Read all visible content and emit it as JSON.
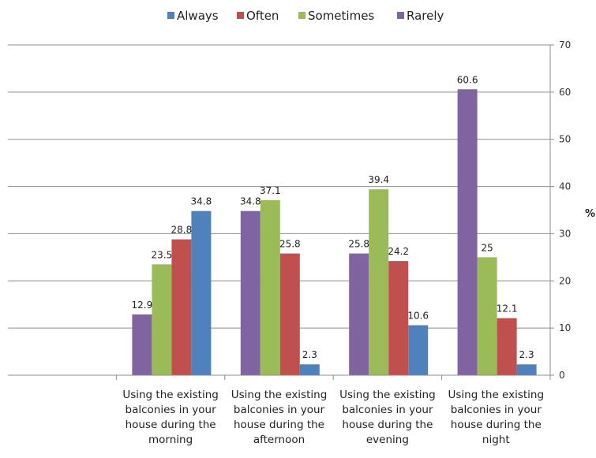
{
  "chart_data": {
    "type": "bar",
    "title": "",
    "xlabel": "",
    "ylabel": "%",
    "ylim": [
      0,
      70
    ],
    "y_ticks": [
      0,
      10,
      20,
      30,
      40,
      50,
      60,
      70
    ],
    "y_axis_side": "right",
    "grid": true,
    "legend_position": "top",
    "categories": [
      "",
      [
        "Using the existing",
        "balconies in your",
        "house during the",
        "morning"
      ],
      [
        "Using the existing",
        "balconies in your",
        "house during the",
        "afternoon"
      ],
      [
        "Using the existing",
        "balconies in your",
        "house during the",
        "evening"
      ],
      [
        "Using the existing",
        "balconies in your",
        "house during the",
        "night"
      ]
    ],
    "legend": [
      "Always",
      "Often",
      "Sometimes",
      "Rarely"
    ],
    "series_colors": {
      "Always": "#4f81bd",
      "Often": "#c0504d",
      "Sometimes": "#9bbb59",
      "Rarely": "#8064a2"
    },
    "groups": [
      {
        "bars": []
      },
      {
        "bars": [
          {
            "series": "Rarely",
            "value": 12.9,
            "label": "12.9"
          },
          {
            "series": "Sometimes",
            "value": 23.5,
            "label": "23.5"
          },
          {
            "series": "Often",
            "value": 28.8,
            "label": "28.8"
          },
          {
            "series": "Always",
            "value": 34.8,
            "label": "34.8"
          }
        ]
      },
      {
        "bars": [
          {
            "series": "Rarely",
            "value": 34.8,
            "label": "34.8"
          },
          {
            "series": "Sometimes",
            "value": 37.1,
            "label": "37.1"
          },
          {
            "series": "Often",
            "value": 25.8,
            "label": "25.8"
          },
          {
            "series": "Always",
            "value": 2.3,
            "label": "2.3"
          }
        ]
      },
      {
        "bars": [
          {
            "series": "Rarely",
            "value": 25.8,
            "label": "25.8"
          },
          {
            "series": "Sometimes",
            "value": 39.4,
            "label": "39.4"
          },
          {
            "series": "Often",
            "value": 24.2,
            "label": "24.2"
          },
          {
            "series": "Always",
            "value": 10.6,
            "label": "10.6"
          }
        ]
      },
      {
        "bars": [
          {
            "series": "Rarely",
            "value": 60.6,
            "label": "60.6"
          },
          {
            "series": "Sometimes",
            "value": 25,
            "label": "25"
          },
          {
            "series": "Often",
            "value": 12.1,
            "label": "12.1"
          },
          {
            "series": "Always",
            "value": 2.3,
            "label": "2.3"
          }
        ]
      }
    ]
  }
}
